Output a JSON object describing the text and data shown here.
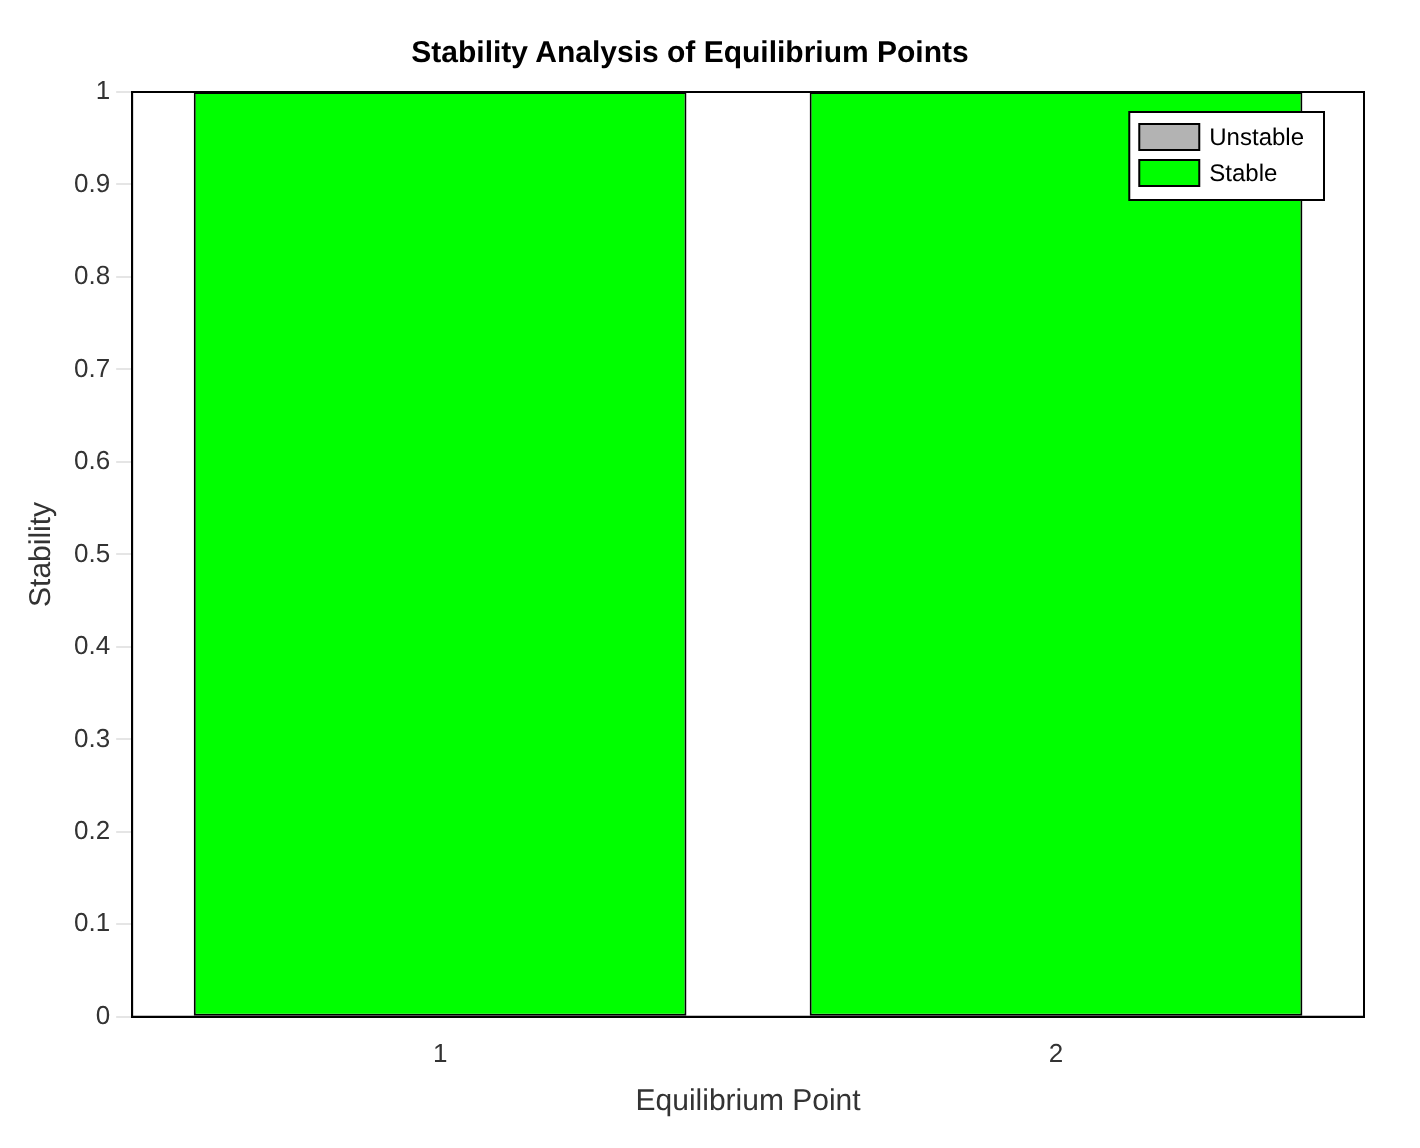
{
  "chart_data": {
    "type": "bar",
    "title": "Stability Analysis of Equilibrium Points",
    "xlabel": "Equilibrium Point",
    "ylabel": "Stability",
    "categories": [
      "1",
      "2"
    ],
    "stacked": true,
    "series": [
      {
        "name": "Unstable",
        "color": "#b3b3b3",
        "values": [
          0,
          0
        ]
      },
      {
        "name": "Stable",
        "color": "#00ff00",
        "values": [
          1,
          1
        ]
      }
    ],
    "ylim": [
      0,
      1
    ],
    "yticks": [
      0,
      0.1,
      0.2,
      0.3,
      0.4,
      0.5,
      0.6,
      0.7,
      0.8,
      0.9,
      1
    ],
    "legend": "top right",
    "grid": false
  }
}
